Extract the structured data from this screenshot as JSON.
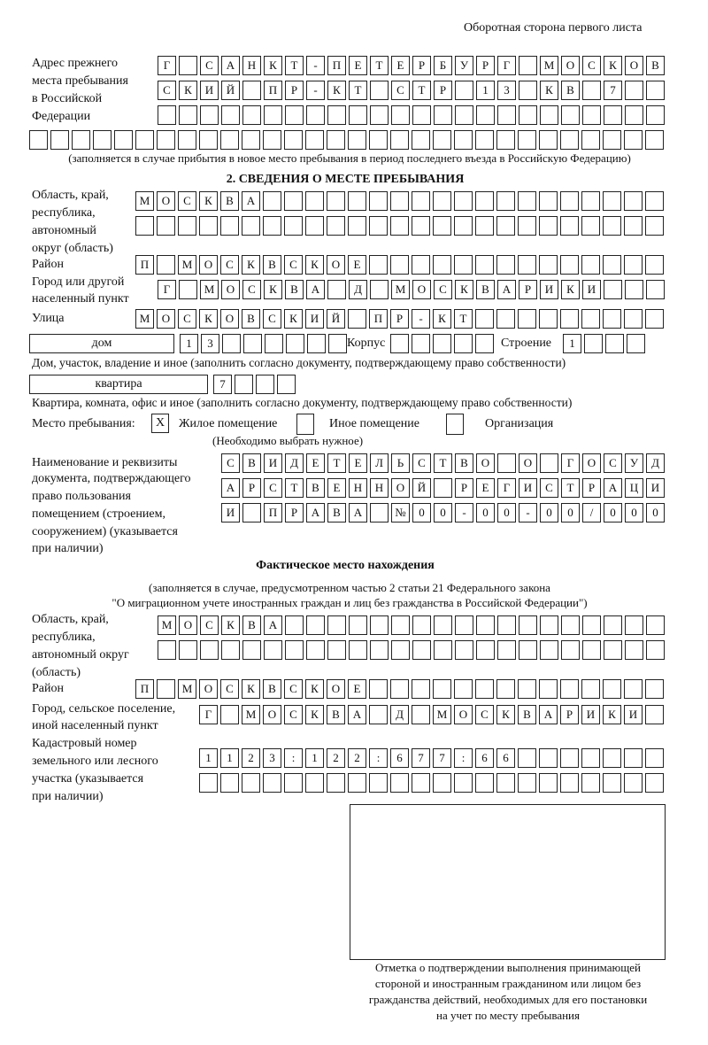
{
  "header": {
    "page_side": "Оборотная сторона первого листа"
  },
  "prev_address": {
    "label": [
      "Адрес прежнего",
      "места пребывания",
      "в Российской",
      "Федерации"
    ],
    "rows": [
      "Г САНКТ-ПЕТЕРБУРГ МОСКОВ",
      "СКИЙ ПР-КТ СТР 13 КВ 7  ",
      "                        ",
      "                              "
    ],
    "note": "(заполняется в случае прибытия в новое место пребывания в период последнего въезда в Российскую Федерацию)"
  },
  "section2": {
    "title": "2. СВЕДЕНИЯ О МЕСТЕ ПРЕБЫВАНИЯ",
    "region_label": [
      "Область, край,",
      "республика,",
      "автономный",
      "округ (область)"
    ],
    "region_rows": [
      "МОСКВА                   ",
      "                         "
    ],
    "district_label": "Район",
    "district_row": "П МОСКВСКОЕ              ",
    "city_label": [
      "Город или другой",
      "населенный пункт"
    ],
    "city_row": "Г МОСКВА Д МОСКВАРИКИ   ",
    "street_label": "Улица",
    "street_row": "МОСКОВСКИЙ ПР-КТ         ",
    "house_type": "дом",
    "house_row": "13      ",
    "korpus_label": "Корпус",
    "korpus_row": "     ",
    "building_label": "Строение",
    "building_row": "1   ",
    "house_note": "Дом, участок, владение и иное (заполнить согласно документу, подтверждающему право собственности)",
    "apt_type": "квартира",
    "apt_row": "7   ",
    "apt_note": "Квартира, комната, офис и иное (заполнить согласно документу, подтверждающему право собственности)",
    "stay_label": "Место пребывания:",
    "stay_options": [
      {
        "label": "Жилое помещение",
        "mark": "X"
      },
      {
        "label": "Иное помещение",
        "mark": ""
      },
      {
        "label": "Организация",
        "mark": ""
      }
    ],
    "stay_note": "(Необходимо выбрать нужное)",
    "doc_label": [
      "Наименование и реквизиты",
      "документа, подтверждающего",
      "право пользования",
      "помещением (строением,",
      "сооружением) (указывается",
      "при наличии)"
    ],
    "doc_rows": [
      "СВИДЕТЕЛЬСТВО О ГОСУД",
      "АРСТВЕННОЙ РЕГИСТРАЦИ",
      "И ПРАВА №00-00-00/000"
    ]
  },
  "actual": {
    "title": "Фактическое место нахождения",
    "note": [
      "(заполняется в случае, предусмотренном частью 2 статьи 21 Федерального закона",
      "\"О миграционном учете иностранных граждан и лиц без гражданства в Российской Федерации\")"
    ],
    "region_label": [
      "Область, край,",
      "республика,",
      "автономный округ",
      "(область)"
    ],
    "region_rows": [
      "МОСКВА                  ",
      "                        "
    ],
    "district_label": "Район",
    "district_row": "П МОСКВСКОЕ              ",
    "city_label": [
      "Город, сельское поселение,",
      "иной населенный пункт"
    ],
    "city_row": "Г МОСКВА Д МОСКВАРИКИ ",
    "cadastre_label": [
      "Кадастровый номер",
      "земельного или лесного",
      "участка (указывается",
      "при наличии)"
    ],
    "cadastre_rows": [
      "1123:122:677:66       ",
      "                      "
    ]
  },
  "confirm_caption": [
    "Отметка о подтверждении выполнения принимающей",
    "стороной и иностранным гражданином или лицом без",
    "гражданства действий, необходимых для его постановки",
    "на учет по месту пребывания"
  ]
}
